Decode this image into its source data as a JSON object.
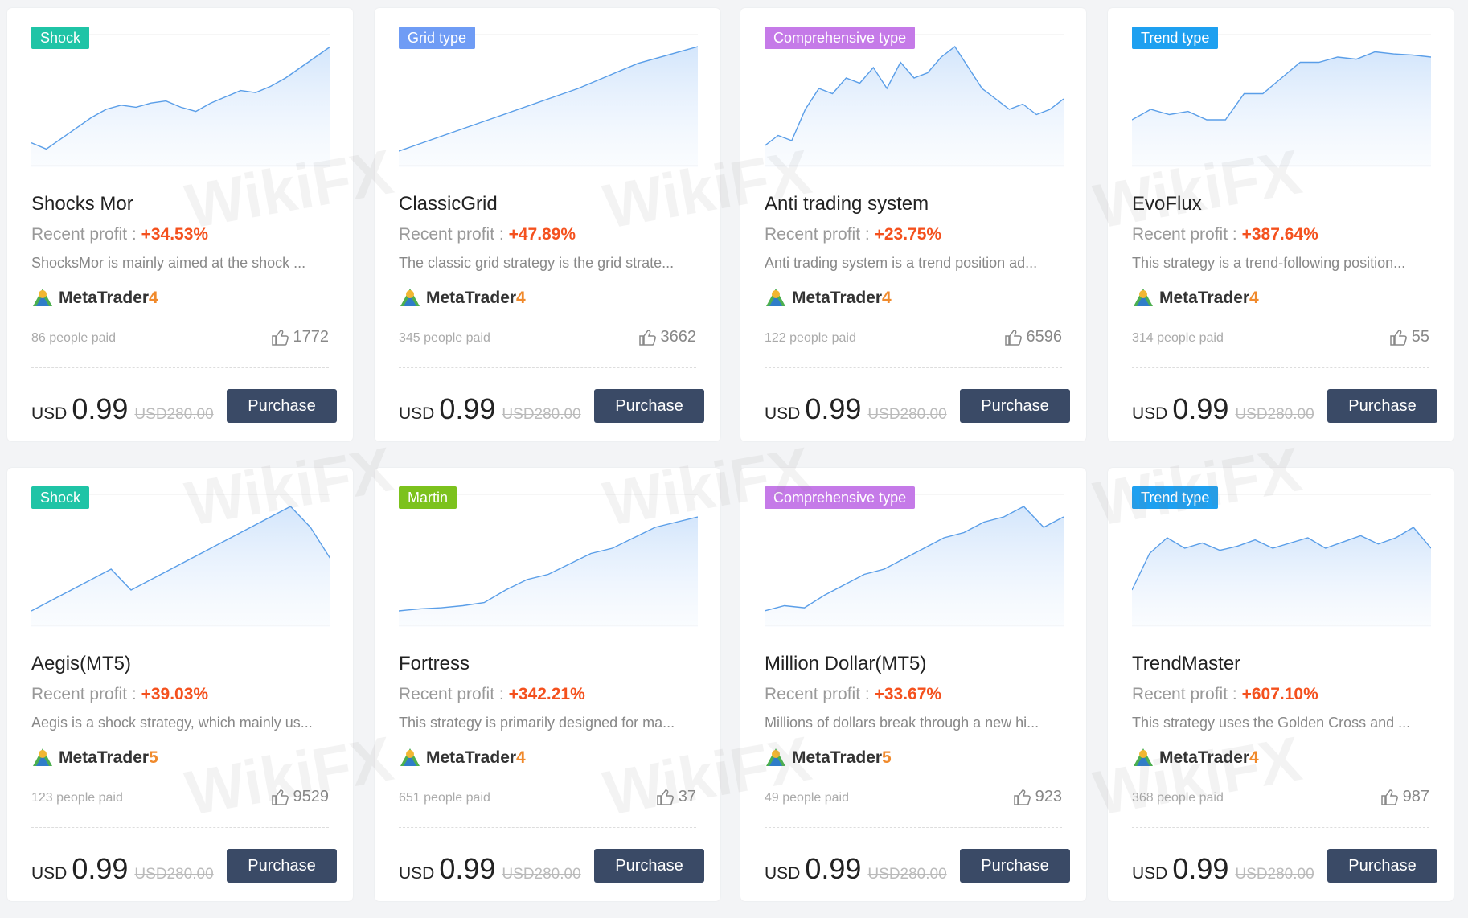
{
  "watermark": "WikiFX",
  "cards": [
    {
      "tag": "Shock",
      "tag_color": "#1fc4a6",
      "title": "Shocks Mor",
      "profit_label": "Recent profit :",
      "profit": "+34.53%",
      "description": "ShocksMor is mainly aimed at the shock ...",
      "platform": "MetaTrader",
      "version": 4,
      "paid": "86 people paid",
      "likes": 1772,
      "currency": "USD",
      "price": 0.99,
      "old_price": "USD280.00",
      "button": "Purchase",
      "curve": [
        8,
        2,
        12,
        22,
        32,
        40,
        44,
        42,
        46,
        48,
        42,
        38,
        46,
        52,
        58,
        56,
        62,
        70,
        80,
        90,
        100
      ]
    },
    {
      "tag": "Grid type",
      "tag_color": "#6f9cf5",
      "title": "ClassicGrid",
      "profit_label": "Recent profit :",
      "profit": "+47.89%",
      "description": "The classic grid strategy is the grid strate...",
      "platform": "MetaTrader",
      "version": 4,
      "paid": "345 people paid",
      "likes": 3662,
      "currency": "USD",
      "price": 0.99,
      "old_price": "USD280.00",
      "button": "Purchase",
      "curve": [
        0,
        10,
        20,
        30,
        40,
        50,
        60,
        72,
        84,
        92,
        100
      ]
    },
    {
      "tag": "Comprehensive type",
      "tag_color": "#c57ae8",
      "title": "Anti trading system",
      "profit_label": "Recent profit :",
      "profit": "+23.75%",
      "description": "Anti trading system is a trend position ad...",
      "platform": "MetaTrader",
      "version": 4,
      "paid": "122 people paid",
      "likes": 6596,
      "currency": "USD",
      "price": 0.99,
      "old_price": "USD280.00",
      "button": "Purchase",
      "curve": [
        5,
        15,
        10,
        40,
        60,
        55,
        70,
        65,
        80,
        60,
        85,
        70,
        75,
        90,
        100,
        80,
        60,
        50,
        40,
        45,
        35,
        40,
        50
      ]
    },
    {
      "tag": "Trend type",
      "tag_color": "#1ea0f0",
      "title": "EvoFlux",
      "profit_label": "Recent profit :",
      "profit": "+387.64%",
      "description": "This strategy is a trend-following position...",
      "platform": "MetaTrader",
      "version": 4,
      "paid": "314 people paid",
      "likes": 55,
      "currency": "USD",
      "price": 0.99,
      "old_price": "USD280.00",
      "button": "Purchase",
      "curve": [
        30,
        40,
        35,
        38,
        30,
        30,
        55,
        55,
        70,
        85,
        85,
        90,
        88,
        95,
        93,
        92,
        90
      ]
    },
    {
      "tag": "Shock",
      "tag_color": "#1fc4a6",
      "title": "Aegis(MT5)",
      "profit_label": "Recent profit :",
      "profit": "+39.03%",
      "description": "Aegis is a shock strategy, which mainly us...",
      "platform": "MetaTrader",
      "version": 5,
      "paid": "123 people paid",
      "likes": 9529,
      "currency": "USD",
      "price": 0.99,
      "old_price": "USD280.00",
      "button": "Purchase",
      "curve": [
        0,
        10,
        20,
        30,
        40,
        20,
        30,
        40,
        50,
        60,
        70,
        80,
        90,
        100,
        80,
        50
      ]
    },
    {
      "tag": "Martin",
      "tag_color": "#7cc21d",
      "title": "Fortress",
      "profit_label": "Recent profit :",
      "profit": "+342.21%",
      "description": "This strategy is primarily designed for ma...",
      "platform": "MetaTrader",
      "version": 4,
      "paid": "651 people paid",
      "likes": 37,
      "currency": "USD",
      "price": 0.99,
      "old_price": "USD280.00",
      "button": "Purchase",
      "curve": [
        0,
        2,
        3,
        5,
        8,
        20,
        30,
        35,
        45,
        55,
        60,
        70,
        80,
        85,
        90
      ]
    },
    {
      "tag": "Comprehensive type",
      "tag_color": "#c57ae8",
      "title": "Million Dollar(MT5)",
      "profit_label": "Recent profit :",
      "profit": "+33.67%",
      "description": "Millions of dollars break through a new hi...",
      "platform": "MetaTrader",
      "version": 5,
      "paid": "49 people paid",
      "likes": 923,
      "currency": "USD",
      "price": 0.99,
      "old_price": "USD280.00",
      "button": "Purchase",
      "curve": [
        0,
        5,
        3,
        15,
        25,
        35,
        40,
        50,
        60,
        70,
        75,
        85,
        90,
        100,
        80,
        90
      ]
    },
    {
      "tag": "Trend type",
      "tag_color": "#1ea0f0",
      "title": "TrendMaster",
      "profit_label": "Recent profit :",
      "profit": "+607.10%",
      "description": "This strategy uses the Golden Cross and ...",
      "platform": "MetaTrader",
      "version": 4,
      "paid": "368 people paid",
      "likes": 987,
      "currency": "USD",
      "price": 0.99,
      "old_price": "USD280.00",
      "button": "Purchase",
      "curve": [
        20,
        55,
        70,
        60,
        65,
        58,
        62,
        68,
        60,
        65,
        70,
        60,
        66,
        72,
        64,
        70,
        80,
        60
      ]
    }
  ]
}
